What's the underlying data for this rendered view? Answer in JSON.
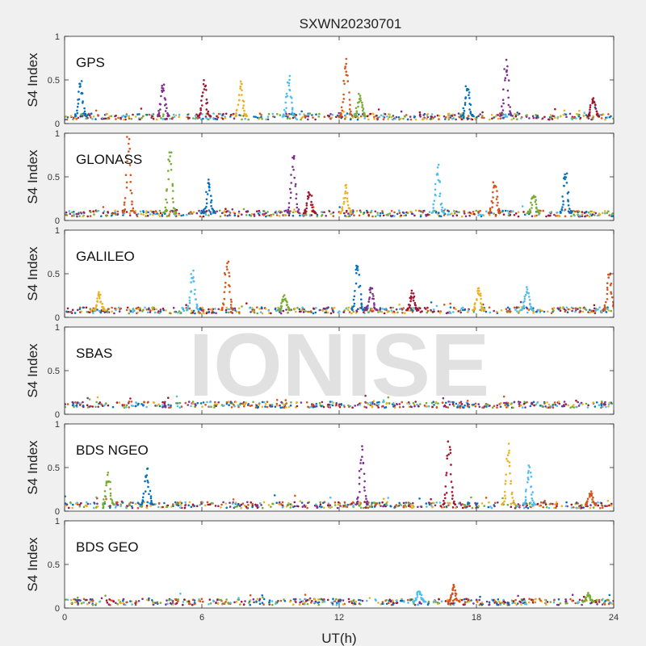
{
  "chart_data": {
    "type": "scatter",
    "title": "SXWN20230701",
    "xlabel": "UT(h)",
    "xlim": [
      0,
      24
    ],
    "xticks": [
      "0",
      "6",
      "12",
      "18",
      "24"
    ],
    "watermark": "IONISE",
    "series_colors": [
      "#0072bd",
      "#d95319",
      "#edb120",
      "#7e2f8e",
      "#77ac30",
      "#4dbeee",
      "#a2142f"
    ],
    "panels": [
      {
        "label": "GPS",
        "ylabel": "S4 Index",
        "ylim": [
          0,
          1
        ],
        "yticks": [
          "0",
          "0.5",
          "1"
        ],
        "baseline": 0.08,
        "spikes": [
          {
            "t": 0.7,
            "peak": 0.5
          },
          {
            "t": 4.3,
            "peak": 0.45
          },
          {
            "t": 6.1,
            "peak": 0.5
          },
          {
            "t": 7.7,
            "peak": 0.47
          },
          {
            "t": 9.8,
            "peak": 0.53
          },
          {
            "t": 12.3,
            "peak": 0.72
          },
          {
            "t": 12.9,
            "peak": 0.35
          },
          {
            "t": 17.6,
            "peak": 0.45
          },
          {
            "t": 19.3,
            "peak": 0.74
          },
          {
            "t": 23.1,
            "peak": 0.3
          }
        ]
      },
      {
        "label": "GLONASS",
        "ylabel": "S4 Index",
        "ylim": [
          0,
          1
        ],
        "yticks": [
          "0",
          "0.5",
          "1"
        ],
        "baseline": 0.08,
        "spikes": [
          {
            "t": 2.8,
            "peak": 0.97
          },
          {
            "t": 4.6,
            "peak": 0.8
          },
          {
            "t": 6.3,
            "peak": 0.47
          },
          {
            "t": 10.0,
            "peak": 0.78
          },
          {
            "t": 10.7,
            "peak": 0.35
          },
          {
            "t": 12.3,
            "peak": 0.4
          },
          {
            "t": 16.3,
            "peak": 0.67
          },
          {
            "t": 18.8,
            "peak": 0.45
          },
          {
            "t": 20.5,
            "peak": 0.3
          },
          {
            "t": 21.9,
            "peak": 0.6
          }
        ]
      },
      {
        "label": "GALILEO",
        "ylabel": "S4 Index",
        "ylim": [
          0,
          1
        ],
        "yticks": [
          "0",
          "0.5",
          "1"
        ],
        "baseline": 0.08,
        "spikes": [
          {
            "t": 1.5,
            "peak": 0.28
          },
          {
            "t": 5.6,
            "peak": 0.55
          },
          {
            "t": 7.1,
            "peak": 0.67
          },
          {
            "t": 9.6,
            "peak": 0.25
          },
          {
            "t": 12.8,
            "peak": 0.63
          },
          {
            "t": 13.4,
            "peak": 0.35
          },
          {
            "t": 15.2,
            "peak": 0.3
          },
          {
            "t": 18.1,
            "peak": 0.35
          },
          {
            "t": 20.2,
            "peak": 0.35
          },
          {
            "t": 23.8,
            "peak": 0.52
          }
        ]
      },
      {
        "label": "SBAS",
        "ylabel": "S4 Index",
        "ylim": [
          0,
          1
        ],
        "yticks": [
          "0",
          "0.5",
          "1"
        ],
        "baseline": 0.11,
        "spikes": []
      },
      {
        "label": "BDS NGEO",
        "ylabel": "S4 Index",
        "ylim": [
          0,
          1
        ],
        "yticks": [
          "0",
          "0.5",
          "1"
        ],
        "baseline": 0.07,
        "spikes": [
          {
            "t": 1.9,
            "peak": 0.43
          },
          {
            "t": 3.6,
            "peak": 0.5
          },
          {
            "t": 13.0,
            "peak": 0.72
          },
          {
            "t": 16.8,
            "peak": 0.77
          },
          {
            "t": 19.4,
            "peak": 0.78
          },
          {
            "t": 20.3,
            "peak": 0.52
          },
          {
            "t": 23.0,
            "peak": 0.22
          }
        ]
      },
      {
        "label": "BDS GEO",
        "ylabel": "S4 Index",
        "ylim": [
          0,
          1
        ],
        "yticks": [
          "0",
          "0.5",
          "1"
        ],
        "baseline": 0.07,
        "spikes": [
          {
            "t": 15.5,
            "peak": 0.2
          },
          {
            "t": 17.0,
            "peak": 0.27
          },
          {
            "t": 22.9,
            "peak": 0.17
          }
        ]
      }
    ]
  }
}
